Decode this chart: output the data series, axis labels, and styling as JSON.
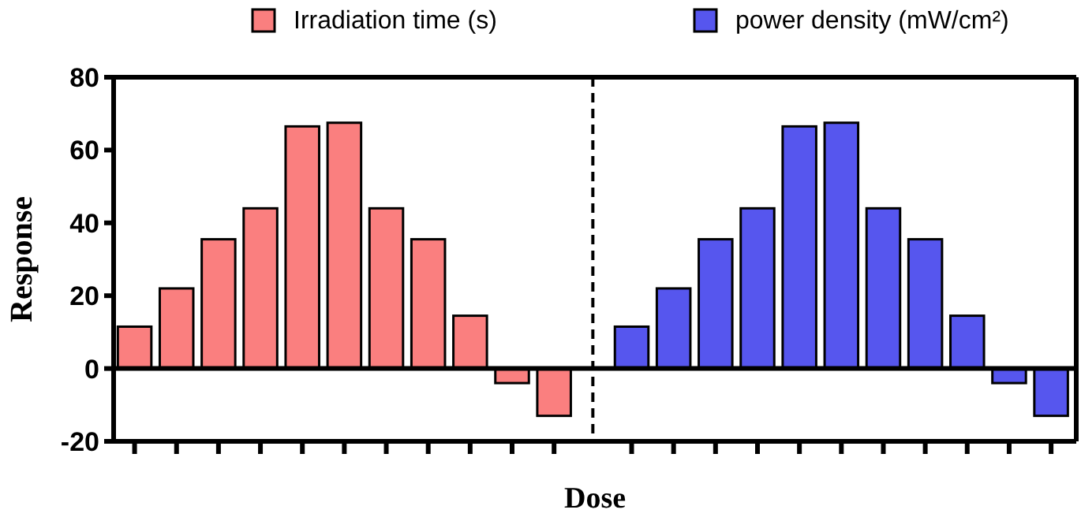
{
  "chart_data": {
    "type": "bar",
    "xlabel": "Dose",
    "ylabel": "Response",
    "categories": [
      null,
      null,
      null,
      null,
      null,
      null,
      null,
      null,
      null,
      null,
      null,
      null,
      null,
      null,
      null,
      null,
      null,
      null,
      null,
      null,
      null,
      null
    ],
    "ylim": [
      -20,
      80
    ],
    "yticks": [
      -20,
      0,
      20,
      40,
      60,
      80
    ],
    "tick_labels": "y",
    "legend": "top",
    "series": [
      {
        "name": "Irradiation time (s)",
        "color": "#fa7f7f",
        "values": [
          11.5,
          22,
          35.5,
          44,
          66.5,
          67.5,
          44,
          35.5,
          14.5,
          -4,
          -13,
          null,
          null,
          null,
          null,
          null,
          null,
          null,
          null,
          null,
          null,
          null
        ]
      },
      {
        "name": "power density (mW/cm²)",
        "color": "#5656ee",
        "values": [
          null,
          null,
          null,
          null,
          null,
          null,
          null,
          null,
          null,
          null,
          null,
          11.5,
          22,
          35.5,
          44,
          66.5,
          67.5,
          44,
          35.5,
          14.5,
          -4,
          -13
        ]
      }
    ]
  }
}
